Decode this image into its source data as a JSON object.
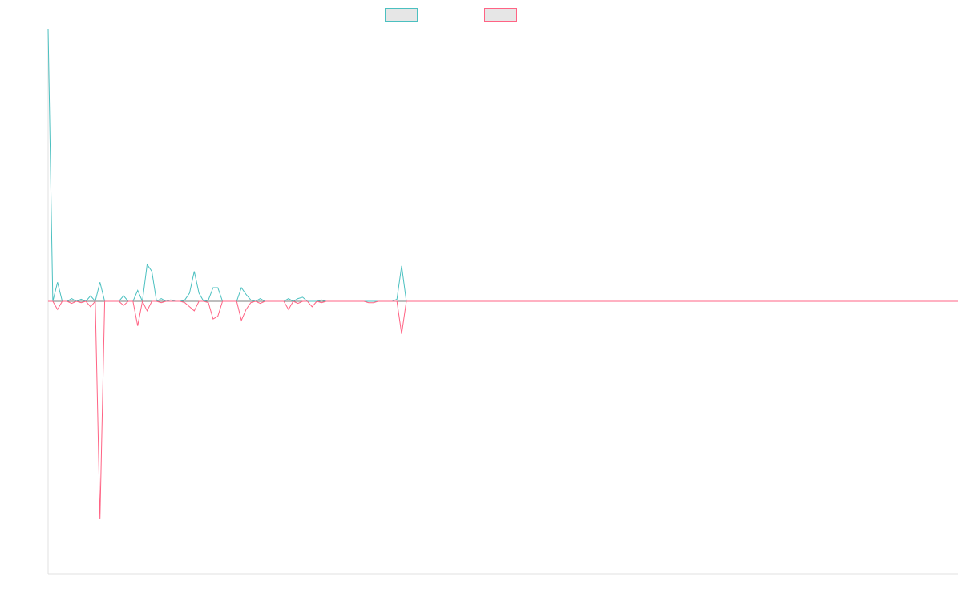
{
  "chart_data": {
    "type": "line",
    "title": "",
    "xlabel": "",
    "ylabel": "",
    "legend_position": "top-center",
    "grid": false,
    "x_count": 194,
    "ylim": [
      -20,
      20
    ],
    "series": [
      {
        "name": "",
        "color": "#4bc0c0",
        "spikes": [
          [
            0,
            20
          ],
          [
            2,
            1.4
          ],
          [
            5,
            0.2
          ],
          [
            7,
            0.15
          ],
          [
            9,
            0.4
          ],
          [
            11,
            1.4
          ],
          [
            16,
            0.4
          ],
          [
            19,
            0.8
          ],
          [
            21,
            2.7
          ],
          [
            22,
            2.2
          ],
          [
            24,
            0.2
          ],
          [
            26,
            0.1
          ],
          [
            29,
            0.1
          ],
          [
            30,
            0.6
          ],
          [
            31,
            2.2
          ],
          [
            32,
            0.6
          ],
          [
            34,
            0.1
          ],
          [
            35,
            1.0
          ],
          [
            36,
            1.0
          ],
          [
            41,
            1.0
          ],
          [
            42,
            0.5
          ],
          [
            43,
            0.1
          ],
          [
            45,
            0.2
          ],
          [
            51,
            0.2
          ],
          [
            53,
            0.2
          ],
          [
            54,
            0.3
          ],
          [
            58,
            0.1
          ],
          [
            74,
            0.15
          ],
          [
            75,
            2.6
          ]
        ]
      },
      {
        "name": "",
        "color": "#ff6384",
        "spikes": [
          [
            2,
            -0.6
          ],
          [
            5,
            -0.15
          ],
          [
            7,
            -0.1
          ],
          [
            9,
            -0.4
          ],
          [
            11,
            -16
          ],
          [
            16,
            -0.3
          ],
          [
            19,
            -1.8
          ],
          [
            21,
            -0.7
          ],
          [
            24,
            -0.1
          ],
          [
            29,
            -0.1
          ],
          [
            30,
            -0.4
          ],
          [
            31,
            -0.7
          ],
          [
            34,
            -0.1
          ],
          [
            35,
            -1.3
          ],
          [
            36,
            -1.1
          ],
          [
            41,
            -1.4
          ],
          [
            42,
            -0.6
          ],
          [
            43,
            -0.1
          ],
          [
            45,
            -0.15
          ],
          [
            51,
            -0.6
          ],
          [
            53,
            -0.15
          ],
          [
            56,
            -0.4
          ],
          [
            58,
            -0.1
          ],
          [
            68,
            -0.1
          ],
          [
            69,
            -0.1
          ],
          [
            75,
            -2.4
          ]
        ]
      }
    ]
  }
}
